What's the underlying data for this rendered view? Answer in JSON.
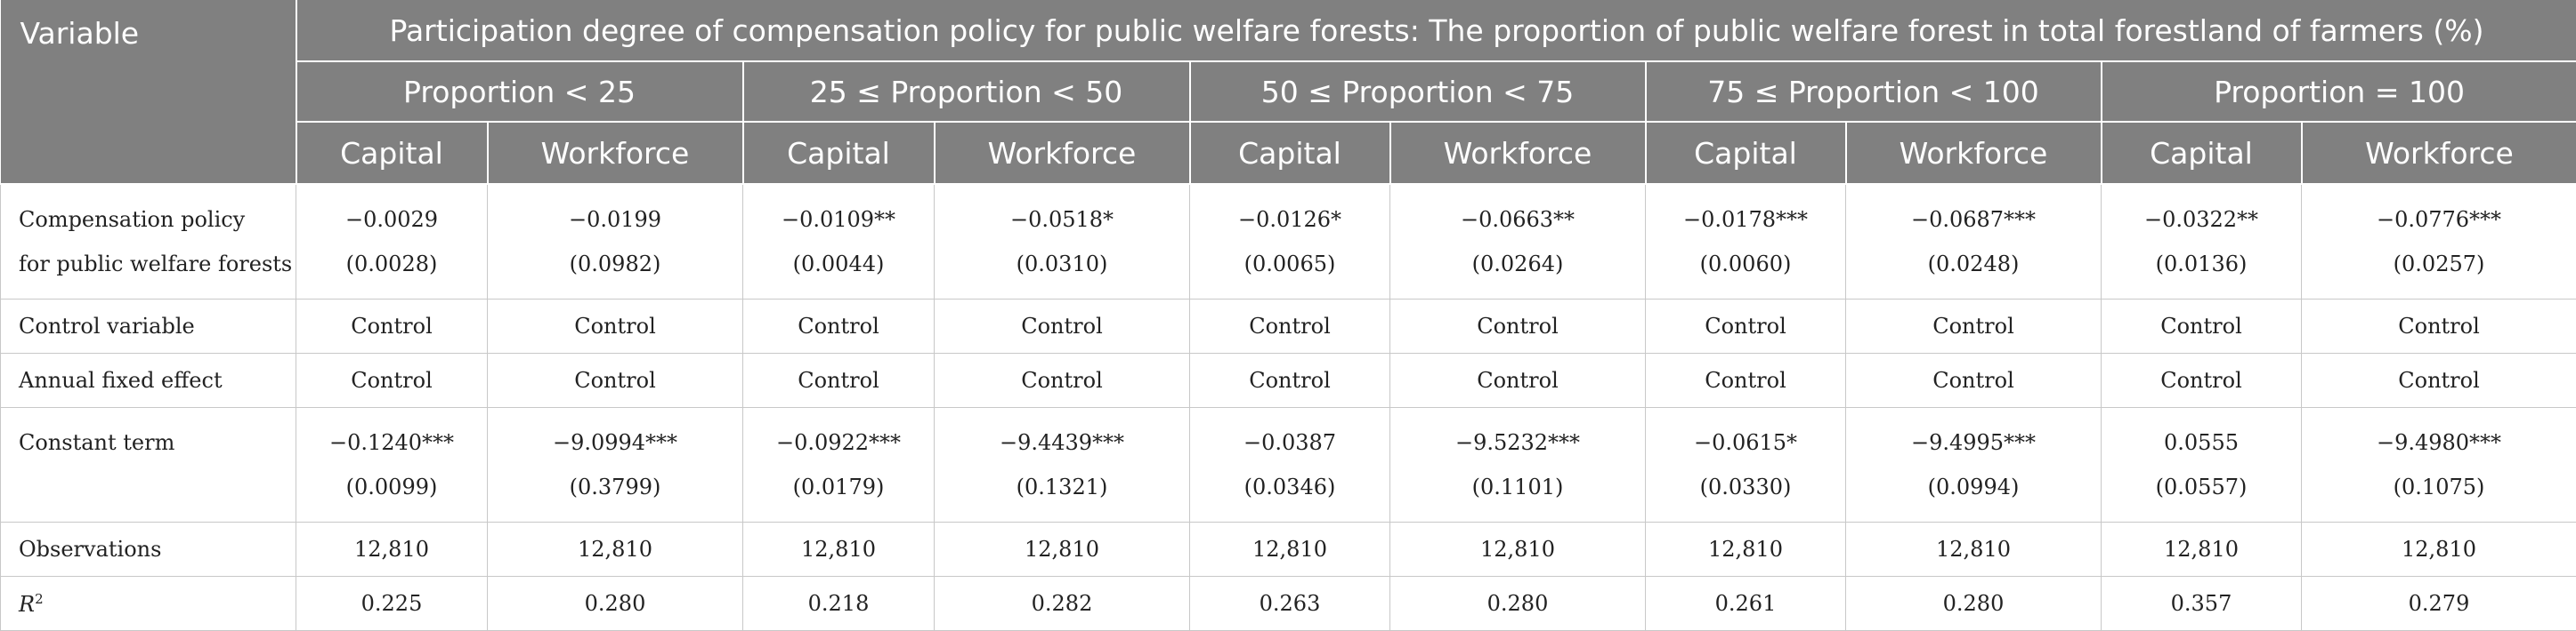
{
  "table": {
    "variable_header": "Variable",
    "main_header": "Participation degree of compensation policy for public welfare forests: The proportion of public welfare forest in total forestland of farmers (%)",
    "groups": [
      "Proportion < 25",
      "25 ≤ Proportion < 50",
      "50 ≤ Proportion < 75",
      "75 ≤ Proportion < 100",
      "Proportion = 100"
    ],
    "sub_headers": {
      "capital": "Capital",
      "workforce": "Workforce"
    },
    "rows": {
      "compensation": {
        "label_line1": "Compensation policy",
        "label_line2": "for public welfare forests",
        "coef": [
          "−0.0029",
          "−0.0199",
          "−0.0109**",
          "−0.0518*",
          "−0.0126*",
          "−0.0663**",
          "−0.0178***",
          "−0.0687***",
          "−0.0322**",
          "−0.0776***"
        ],
        "se": [
          "(0.0028)",
          "(0.0982)",
          "(0.0044)",
          "(0.0310)",
          "(0.0065)",
          "(0.0264)",
          "(0.0060)",
          "(0.0248)",
          "(0.0136)",
          "(0.0257)"
        ]
      },
      "control_variable": {
        "label": "Control variable",
        "values": [
          "Control",
          "Control",
          "Control",
          "Control",
          "Control",
          "Control",
          "Control",
          "Control",
          "Control",
          "Control"
        ]
      },
      "annual_fixed_effect": {
        "label": "Annual fixed effect",
        "values": [
          "Control",
          "Control",
          "Control",
          "Control",
          "Control",
          "Control",
          "Control",
          "Control",
          "Control",
          "Control"
        ]
      },
      "constant": {
        "label": "Constant term",
        "coef": [
          "−0.1240***",
          "−9.0994***",
          "−0.0922***",
          "−9.4439***",
          "−0.0387",
          "−9.5232***",
          "−0.0615*",
          "−9.4995***",
          "0.0555",
          "−9.4980***"
        ],
        "se": [
          "(0.0099)",
          "(0.3799)",
          "(0.0179)",
          "(0.1321)",
          "(0.0346)",
          "(0.1101)",
          "(0.0330)",
          "(0.0994)",
          "(0.0557)",
          "(0.1075)"
        ]
      },
      "observations": {
        "label": "Observations",
        "values": [
          "12,810",
          "12,810",
          "12,810",
          "12,810",
          "12,810",
          "12,810",
          "12,810",
          "12,810",
          "12,810",
          "12,810"
        ]
      },
      "r2": {
        "label_main": "R",
        "label_sup": "2",
        "values": [
          "0.225",
          "0.280",
          "0.218",
          "0.282",
          "0.263",
          "0.280",
          "0.261",
          "0.280",
          "0.357",
          "0.279"
        ]
      }
    }
  }
}
